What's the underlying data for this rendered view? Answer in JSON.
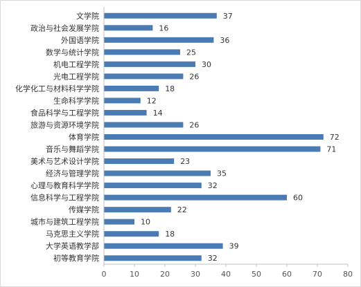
{
  "chart_data": {
    "type": "bar",
    "orientation": "horizontal",
    "categories": [
      "文学院",
      "政治与社会发展学院",
      "外国语学院",
      "数学与统计学院",
      "机电工程学院",
      "光电工程学院",
      "化学化工与材料科学学院",
      "生命科学学院",
      "食品科学与工程学院",
      "旅游与资源环境学院",
      "体育学院",
      "音乐与舞蹈学院",
      "美术与艺术设计学院",
      "经济与管理学院",
      "心理与教育科学学院",
      "信息科学与工程学院",
      "传媒学院",
      "城市与建筑工程学院",
      "马克思主义学院",
      "大学英语教学部",
      "初等教育学院"
    ],
    "values": [
      37,
      16,
      36,
      25,
      30,
      26,
      18,
      12,
      14,
      26,
      72,
      71,
      23,
      35,
      32,
      60,
      22,
      10,
      18,
      39,
      32
    ],
    "xlim": [
      0,
      80
    ],
    "xticks": [
      0,
      10,
      20,
      30,
      40,
      50,
      60,
      70,
      80
    ],
    "grid": false,
    "legend": "none",
    "bar_color": "#4a7cb3",
    "data_labels": true
  }
}
